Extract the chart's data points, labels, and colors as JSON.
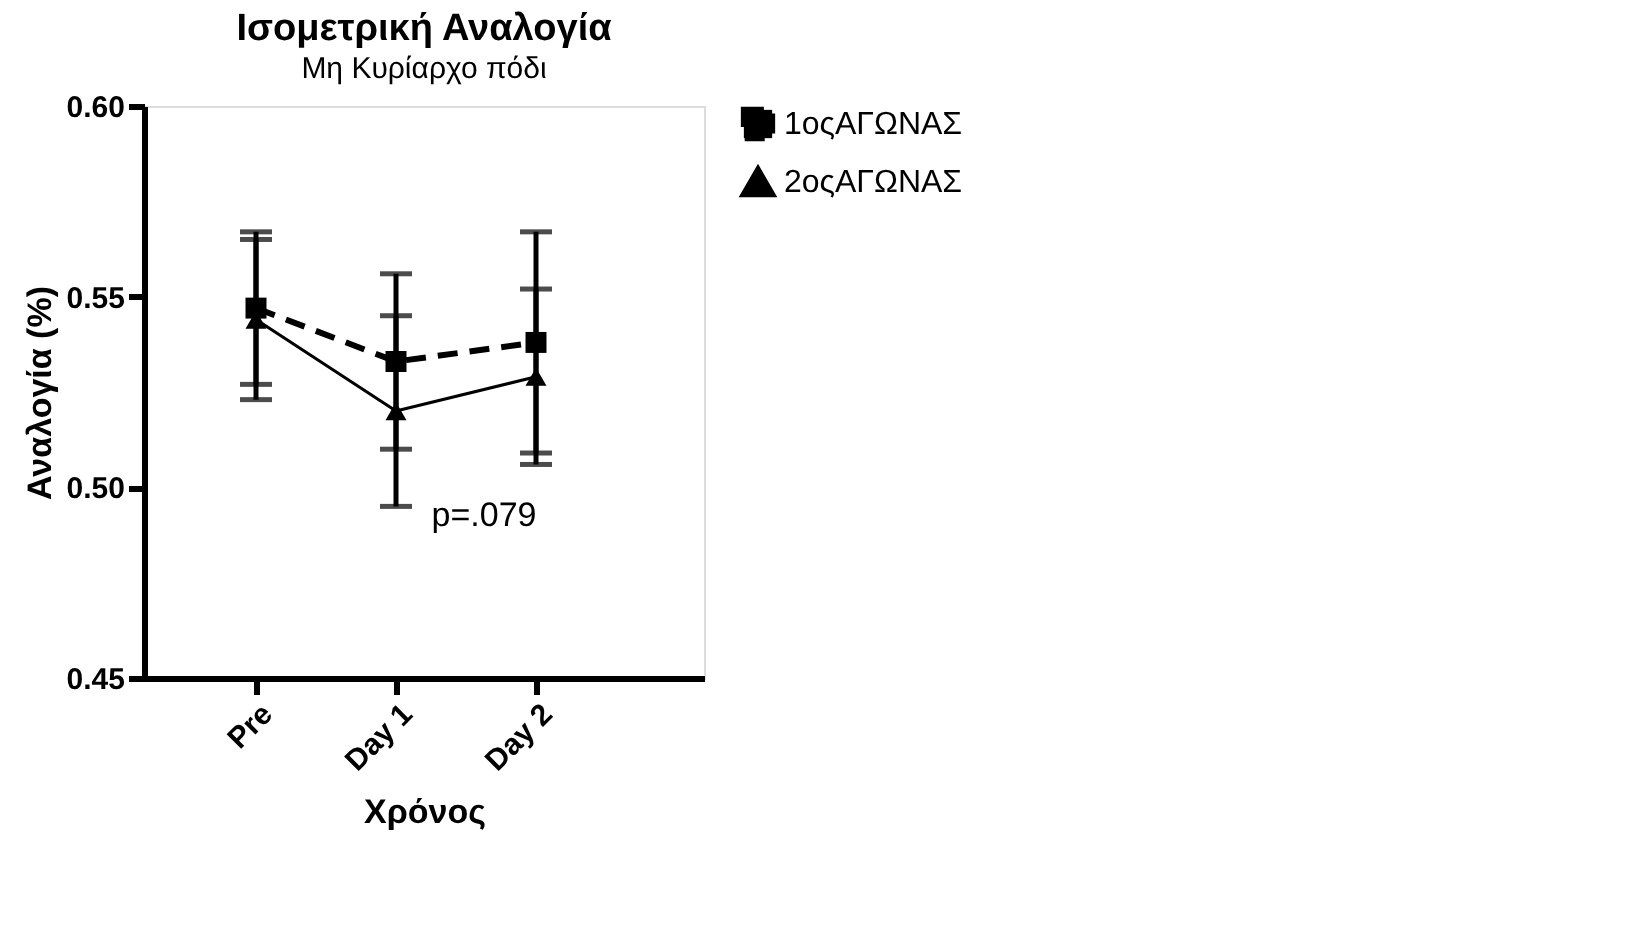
{
  "chart_data": {
    "type": "line",
    "title": "Ισομετρική Αναλογία",
    "subtitle": "Μη Κυρίαρχο πόδι",
    "xlabel": "Χρόνος",
    "ylabel": "Αναλογία (%)",
    "categories": [
      "Pre",
      "Day 1",
      "Day 2"
    ],
    "series": [
      {
        "name": "1οςΑΓΩΝΑΣ",
        "color": "#000000",
        "values": [
          0.547,
          0.533,
          0.538
        ],
        "errors": [
          0.02,
          0.023,
          0.029
        ],
        "marker": "square",
        "line_style": "dashed"
      },
      {
        "name": "2οςΑΓΩΝΑΣ",
        "color": "#000000",
        "values": [
          0.544,
          0.52,
          0.529
        ],
        "errors": [
          0.021,
          0.025,
          0.023
        ],
        "marker": "triangle",
        "line_style": "solid"
      }
    ],
    "ylim": [
      0.45,
      0.6
    ],
    "yticks": [
      0.45,
      {
        "value": 0.5,
        "label": "0.50"
      },
      0.55,
      {
        "value": 0.6,
        "label": "0.60"
      }
    ],
    "grid": false,
    "legend": "right",
    "annotations": [
      "p=.079"
    ]
  }
}
